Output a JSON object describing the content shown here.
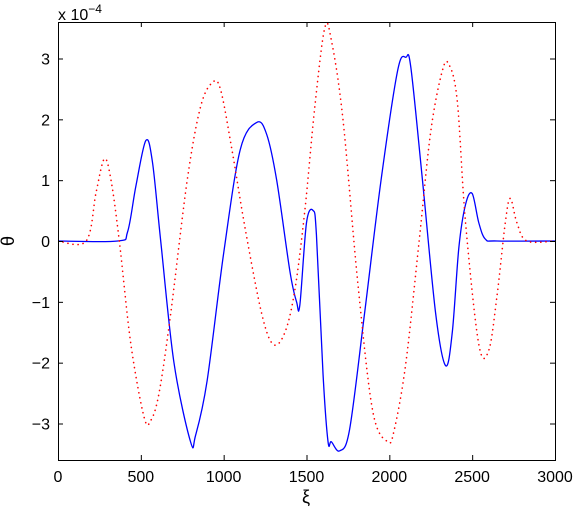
{
  "chart_data": {
    "type": "line",
    "xlabel": "ξ",
    "ylabel": "θ",
    "y_exponent_label": "x 10",
    "y_exponent_power": "−4",
    "xlim": [
      0,
      3000
    ],
    "ylim": [
      -3.6,
      3.6
    ],
    "y_scale": 0.0001,
    "grid": false,
    "xticks": [
      0,
      500,
      1000,
      1500,
      2000,
      2500,
      3000
    ],
    "xtick_labels": [
      "0",
      "500",
      "1000",
      "1500",
      "2000",
      "2500",
      "3000"
    ],
    "yticks": [
      -3,
      -2,
      -1,
      0,
      1,
      2,
      3
    ],
    "ytick_labels": [
      "−3",
      "−2",
      "−1",
      "0",
      "1",
      "2",
      "3"
    ],
    "series": [
      {
        "style": "solid",
        "color": "#0000ff",
        "x": [
          0,
          360,
          420,
          470,
          530,
          570,
          620,
          700,
          800,
          830,
          900,
          1000,
          1100,
          1200,
          1260,
          1320,
          1400,
          1440,
          1460,
          1500,
          1540,
          1560,
          1600,
          1630,
          1650,
          1700,
          1760,
          1850,
          1950,
          2050,
          2100,
          2130,
          2200,
          2280,
          2340,
          2380,
          2420,
          2460,
          2500,
          2540,
          2580,
          2650,
          3000
        ],
        "y": [
          0,
          0,
          0.15,
          0.9,
          1.65,
          1.3,
          0,
          -2.0,
          -3.3,
          -3.2,
          -2.3,
          -0.2,
          1.5,
          1.95,
          1.75,
          1.0,
          -0.5,
          -1.0,
          -1.05,
          0.3,
          0.5,
          0.1,
          -2.2,
          -3.3,
          -3.3,
          -3.45,
          -3.1,
          -1.2,
          1.0,
          2.8,
          3.02,
          2.85,
          1.0,
          -1.2,
          -2.05,
          -1.5,
          -0.1,
          0.6,
          0.78,
          0.3,
          0.03,
          0,
          0
        ]
      },
      {
        "style": "dotted",
        "color": "#ff0000",
        "x": [
          0,
          170,
          230,
          280,
          320,
          370,
          440,
          520,
          560,
          610,
          680,
          780,
          860,
          930,
          980,
          1050,
          1130,
          1230,
          1300,
          1370,
          1430,
          1490,
          1550,
          1610,
          1650,
          1720,
          1810,
          1900,
          1990,
          2030,
          2100,
          2180,
          2250,
          2320,
          2360,
          2410,
          2460,
          2540,
          2600,
          2650,
          2700,
          2730,
          2770,
          2830,
          3000
        ],
        "y": [
          0,
          0,
          0.8,
          1.35,
          1.0,
          0,
          -1.7,
          -2.9,
          -2.95,
          -2.5,
          -1.2,
          1.0,
          2.2,
          2.6,
          2.5,
          1.5,
          0.2,
          -1.2,
          -1.7,
          -1.5,
          -0.8,
          0.5,
          2.2,
          3.5,
          3.3,
          2.0,
          -0.7,
          -2.8,
          -3.3,
          -3.1,
          -2.0,
          0,
          1.8,
          2.8,
          2.9,
          2.3,
          0.3,
          -1.7,
          -1.8,
          -0.9,
          0.3,
          0.7,
          0.3,
          0,
          0
        ]
      }
    ]
  }
}
